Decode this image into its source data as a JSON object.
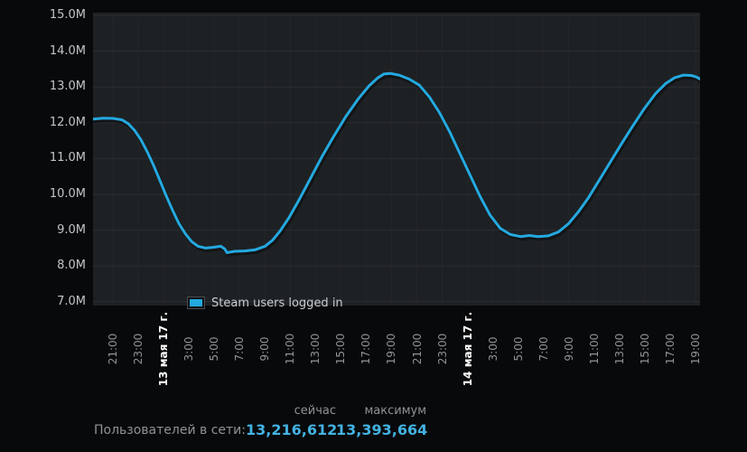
{
  "colors": {
    "page_bg": "#08090a",
    "plot_bg": "#1e2124",
    "grid_h": "#2b2e31",
    "grid_v": "#232629",
    "line": "#24a9e0",
    "line_shadow": "rgba(0,0,0,0.38)",
    "value_text": "#43b2e2"
  },
  "legend": {
    "label": "Steam users logged in",
    "swatch_color": "#24a9e0"
  },
  "stats": {
    "col_now": "сейчас",
    "col_max": "максимум",
    "row_label": "Пользователей в сети:",
    "now_value": "13,216,612",
    "max_value": "13,393,664"
  },
  "chart_data": {
    "type": "line",
    "title": "",
    "xlabel": "",
    "ylabel": "Steam users logged in (millions)",
    "grid": true,
    "legend_position": "bottom-left inside plot",
    "y_range_millions": [
      7.0,
      15.0
    ],
    "y_ticks": [
      "15.0M",
      "14.0M",
      "13.0M",
      "12.0M",
      "11.0M",
      "10.0M",
      "9.0M",
      "8.0M",
      "7.0M"
    ],
    "y_tick_values": [
      15,
      14,
      13,
      12,
      11,
      10,
      9,
      8,
      7
    ],
    "x_window_hours": 48,
    "x_ticks": [
      {
        "label": "21:00",
        "date": false
      },
      {
        "label": "23:00",
        "date": false
      },
      {
        "label": "13 мая 17 г.",
        "date": true
      },
      {
        "label": "3:00",
        "date": false
      },
      {
        "label": "5:00",
        "date": false
      },
      {
        "label": "7:00",
        "date": false
      },
      {
        "label": "9:00",
        "date": false
      },
      {
        "label": "11:00",
        "date": false
      },
      {
        "label": "13:00",
        "date": false
      },
      {
        "label": "15:00",
        "date": false
      },
      {
        "label": "17:00",
        "date": false
      },
      {
        "label": "19:00",
        "date": false
      },
      {
        "label": "21:00",
        "date": false
      },
      {
        "label": "23:00",
        "date": false
      },
      {
        "label": "14 мая 17 г.",
        "date": true
      },
      {
        "label": "3:00",
        "date": false
      },
      {
        "label": "5:00",
        "date": false
      },
      {
        "label": "7:00",
        "date": false
      },
      {
        "label": "9:00",
        "date": false
      },
      {
        "label": "11:00",
        "date": false
      },
      {
        "label": "13:00",
        "date": false
      },
      {
        "label": "15:00",
        "date": false
      },
      {
        "label": "17:00",
        "date": false
      },
      {
        "label": "19:00",
        "date": false
      }
    ],
    "series": [
      {
        "name": "Steam users logged in",
        "color": "#24a9e0",
        "units": "millions of users, x = hours from chart start (~19:30, 48h window)",
        "points": [
          [
            0,
            12.1
          ],
          [
            0.8,
            12.13
          ],
          [
            1.6,
            12.12
          ],
          [
            2.3,
            12.08
          ],
          [
            2.8,
            11.97
          ],
          [
            3.3,
            11.78
          ],
          [
            3.8,
            11.52
          ],
          [
            4.3,
            11.18
          ],
          [
            4.8,
            10.8
          ],
          [
            5.3,
            10.38
          ],
          [
            5.8,
            9.95
          ],
          [
            6.3,
            9.55
          ],
          [
            6.8,
            9.18
          ],
          [
            7.3,
            8.9
          ],
          [
            7.8,
            8.68
          ],
          [
            8.3,
            8.55
          ],
          [
            8.9,
            8.5
          ],
          [
            9.5,
            8.52
          ],
          [
            10.1,
            8.55
          ],
          [
            10.4,
            8.48
          ],
          [
            10.6,
            8.37
          ],
          [
            11.2,
            8.41
          ],
          [
            12.0,
            8.42
          ],
          [
            12.8,
            8.45
          ],
          [
            13.6,
            8.55
          ],
          [
            14.2,
            8.72
          ],
          [
            14.8,
            8.98
          ],
          [
            15.5,
            9.35
          ],
          [
            16.3,
            9.85
          ],
          [
            17.2,
            10.45
          ],
          [
            18.1,
            11.05
          ],
          [
            19.0,
            11.6
          ],
          [
            20.0,
            12.18
          ],
          [
            21.0,
            12.68
          ],
          [
            21.8,
            13.02
          ],
          [
            22.5,
            13.25
          ],
          [
            23.0,
            13.36
          ],
          [
            23.5,
            13.38
          ],
          [
            24.2,
            13.33
          ],
          [
            25.0,
            13.22
          ],
          [
            25.8,
            13.05
          ],
          [
            26.6,
            12.72
          ],
          [
            27.4,
            12.28
          ],
          [
            28.2,
            11.75
          ],
          [
            29.0,
            11.15
          ],
          [
            29.8,
            10.55
          ],
          [
            30.6,
            9.95
          ],
          [
            31.4,
            9.42
          ],
          [
            32.2,
            9.05
          ],
          [
            33.0,
            8.88
          ],
          [
            33.8,
            8.82
          ],
          [
            34.5,
            8.85
          ],
          [
            35.2,
            8.82
          ],
          [
            36.0,
            8.84
          ],
          [
            36.8,
            8.95
          ],
          [
            37.6,
            9.18
          ],
          [
            38.4,
            9.52
          ],
          [
            39.2,
            9.92
          ],
          [
            40.0,
            10.38
          ],
          [
            40.9,
            10.9
          ],
          [
            41.8,
            11.42
          ],
          [
            42.7,
            11.92
          ],
          [
            43.6,
            12.4
          ],
          [
            44.5,
            12.82
          ],
          [
            45.3,
            13.1
          ],
          [
            46.0,
            13.26
          ],
          [
            46.7,
            13.33
          ],
          [
            47.3,
            13.32
          ],
          [
            47.7,
            13.28
          ],
          [
            48,
            13.22
          ]
        ]
      }
    ],
    "annotations": {
      "current_users": 13216612,
      "peak_users": 13393664
    }
  }
}
